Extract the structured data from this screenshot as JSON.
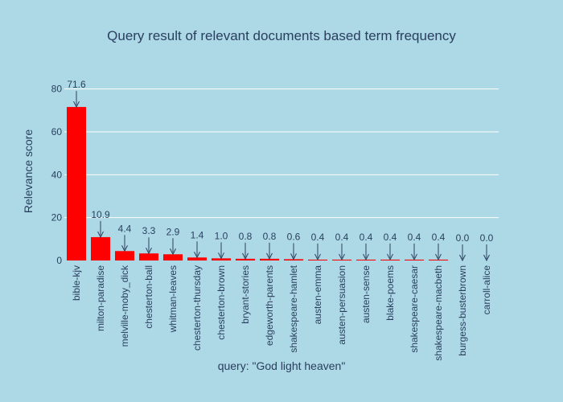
{
  "chart_data": {
    "type": "bar",
    "title": "Query result of relevant documents based term frequency",
    "xlabel": "query: \"God light heaven\"",
    "ylabel": "Relevance score",
    "categories": [
      "bible-kjv",
      "milton-paradise",
      "melville-moby_dick",
      "chesterton-ball",
      "whitman-leaves",
      "chesterton-thursday",
      "chesterton-brown",
      "bryant-stories",
      "edgeworth-parents",
      "shakespeare-hamlet",
      "austen-emma",
      "austen-persuasion",
      "austen-sense",
      "blake-poems",
      "shakespeare-caesar",
      "shakespeare-macbeth",
      "burgess-busterbrown",
      "carroll-alice"
    ],
    "values": [
      71.6,
      10.9,
      4.4,
      3.3,
      2.9,
      1.4,
      1.0,
      0.8,
      0.8,
      0.6,
      0.4,
      0.4,
      0.4,
      0.4,
      0.4,
      0.4,
      0.0,
      0.0
    ],
    "data_labels": [
      "71.6",
      "10.9",
      "4.4",
      "3.3",
      "2.9",
      "1.4",
      "1.0",
      "0.8",
      "0.8",
      "0.6",
      "0.4",
      "0.4",
      "0.4",
      "0.4",
      "0.4",
      "0.4",
      "0.0",
      "0.0"
    ],
    "yticks": [
      0,
      20,
      40,
      60,
      80
    ],
    "ylim": [
      0,
      84
    ],
    "grid": true,
    "bar_color": "#ff0000",
    "background_color": "#add8e6"
  }
}
